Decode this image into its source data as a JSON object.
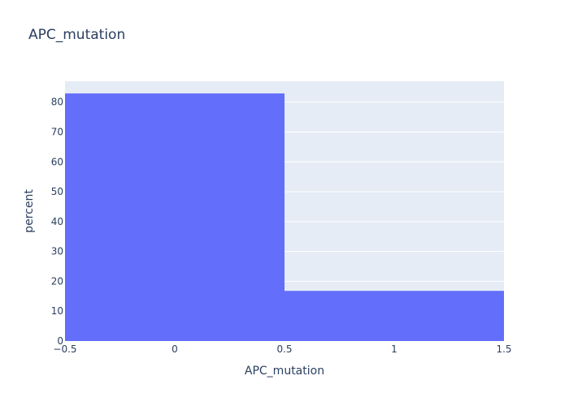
{
  "chart_data": {
    "type": "bar",
    "title": "APC_mutation",
    "xlabel": "APC_mutation",
    "ylabel": "percent",
    "xlim": [
      -0.5,
      1.5
    ],
    "ylim": [
      0,
      87
    ],
    "xticks": [
      -0.5,
      0,
      0.5,
      1,
      1.5
    ],
    "xtick_labels": [
      "−0.5",
      "0",
      "0.5",
      "1",
      "1.5"
    ],
    "yticks": [
      0,
      10,
      20,
      30,
      40,
      50,
      60,
      70,
      80
    ],
    "ytick_labels": [
      "0",
      "10",
      "20",
      "30",
      "40",
      "50",
      "60",
      "70",
      "80"
    ],
    "bins": [
      {
        "x0": -0.5,
        "x1": 0.5,
        "value": 82.9
      },
      {
        "x0": 0.5,
        "x1": 1.5,
        "value": 16.8
      }
    ],
    "grid": true,
    "colors": {
      "bar": "#636efa",
      "plot_bg": "#e5ecf6",
      "grid": "#ffffff",
      "text": "#2a3f5f"
    }
  }
}
